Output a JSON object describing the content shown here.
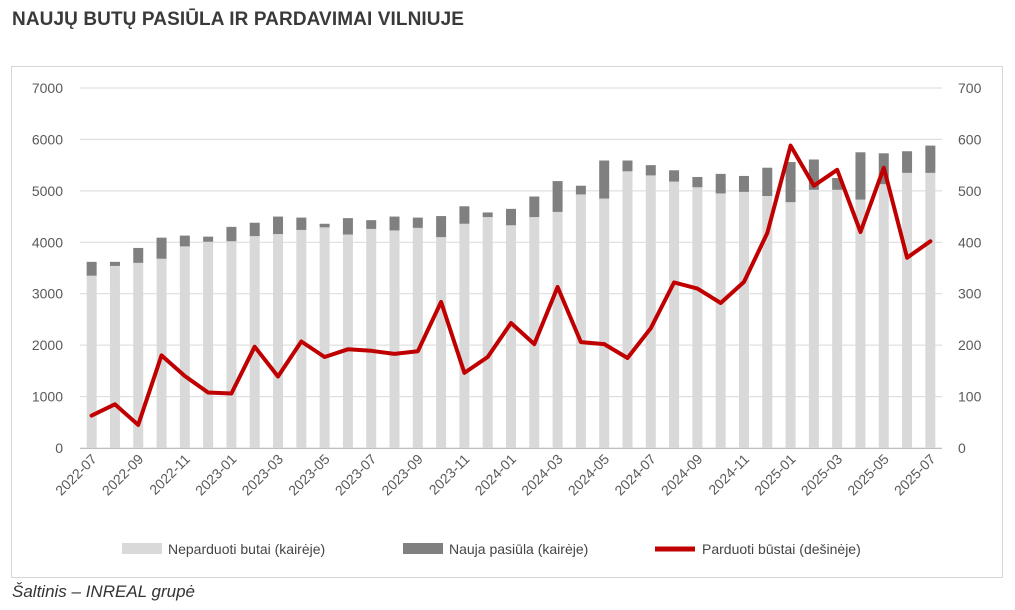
{
  "title": "NAUJŲ BUTŲ PASIŪLA IR PARDAVIMAI VILNIUJE",
  "source": "Šaltinis – INREAL grupė",
  "colors": {
    "unsold": "#d9d9d9",
    "new_supply": "#808080",
    "sold": "#c00000"
  },
  "chart_data": {
    "type": "bar",
    "categories": [
      "2022-07",
      "2022-08",
      "2022-09",
      "2022-10",
      "2022-11",
      "2022-12",
      "2023-01",
      "2023-02",
      "2023-03",
      "2023-04",
      "2023-05",
      "2023-06",
      "2023-07",
      "2023-08",
      "2023-09",
      "2023-10",
      "2023-11",
      "2023-12",
      "2024-01",
      "2024-02",
      "2024-03",
      "2024-04",
      "2024-05",
      "2024-06",
      "2024-07",
      "2024-08",
      "2024-09",
      "2024-10",
      "2024-11",
      "2024-12",
      "2025-01",
      "2025-02",
      "2025-03",
      "2025-04",
      "2025-05",
      "2025-06",
      "2025-07"
    ],
    "x_tick_labels": [
      "2022-07",
      "2022-09",
      "2022-11",
      "2023-01",
      "2023-03",
      "2023-05",
      "2023-07",
      "2023-09",
      "2023-11",
      "2024-01",
      "2024-03",
      "2024-05",
      "2024-07",
      "2024-09",
      "2024-11",
      "2025-01",
      "2025-03",
      "2025-05",
      "2025-07"
    ],
    "series": [
      {
        "name": "Neparduoti butai (kairėje)",
        "kind": "stacked-bar",
        "axis": "left",
        "values": [
          3350,
          3540,
          3600,
          3680,
          3920,
          4010,
          4020,
          4120,
          4160,
          4240,
          4290,
          4150,
          4260,
          4230,
          4280,
          4100,
          4360,
          4490,
          4330,
          4490,
          4590,
          4930,
          4850,
          5380,
          5300,
          5180,
          5070,
          4950,
          4980,
          4900,
          4780,
          5020,
          5020,
          4830,
          5130,
          5350,
          5350
        ]
      },
      {
        "name": "Nauja pasiūla (kairėje)",
        "kind": "stacked-bar",
        "axis": "left",
        "values": [
          270,
          80,
          290,
          410,
          210,
          100,
          280,
          260,
          340,
          240,
          70,
          320,
          170,
          270,
          200,
          410,
          340,
          90,
          320,
          400,
          600,
          170,
          740,
          210,
          200,
          220,
          200,
          380,
          310,
          550,
          780,
          590,
          230,
          920,
          600,
          420,
          530
        ]
      },
      {
        "name": "Parduoti būstai (dešinėje)",
        "kind": "line",
        "axis": "right",
        "values": [
          63,
          85,
          45,
          180,
          140,
          108,
          106,
          197,
          139,
          207,
          177,
          192,
          189,
          183,
          188,
          284,
          146,
          177,
          243,
          202,
          313,
          206,
          202,
          175,
          233,
          322,
          310,
          282,
          323,
          418,
          588,
          510,
          541,
          420,
          545,
          370,
          402
        ]
      }
    ],
    "y_left": {
      "ticks": [
        0,
        1000,
        2000,
        3000,
        4000,
        5000,
        6000,
        7000
      ],
      "ylim": [
        0,
        7000
      ]
    },
    "y_right": {
      "ticks": [
        0,
        100,
        200,
        300,
        400,
        500,
        600,
        700
      ],
      "ylim": [
        0,
        700
      ]
    },
    "legend_position": "bottom"
  }
}
